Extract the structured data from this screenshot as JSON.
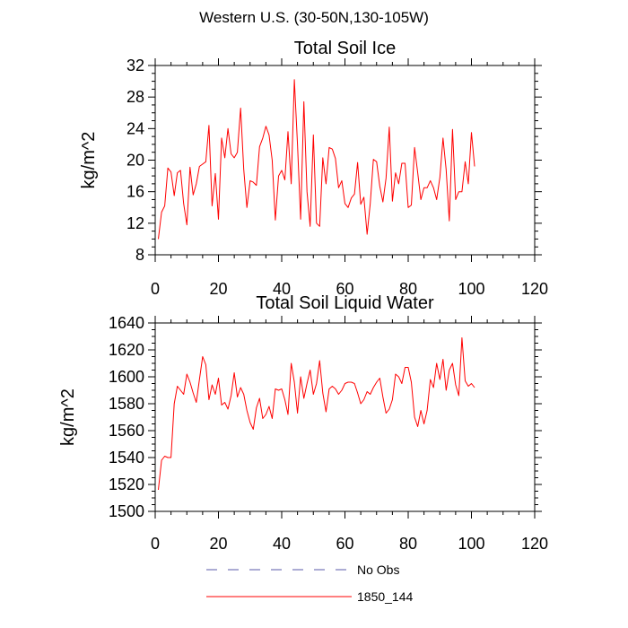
{
  "figure_title": "Western U.S. (30-50N,130-105W)",
  "legend": [
    {
      "label": "No Obs",
      "color": "#5a5aa8",
      "style": "dashed"
    },
    {
      "label": "1850_144",
      "color": "#ff0000",
      "style": "solid"
    }
  ],
  "chart_data": [
    {
      "type": "line",
      "title": "Total Soil Ice",
      "xlabel": "",
      "ylabel": "kg/m^2",
      "xlim": [
        0,
        120
      ],
      "ylim": [
        8,
        32
      ],
      "xticks": [
        0,
        20,
        40,
        60,
        80,
        100,
        120
      ],
      "yticks": [
        8,
        12,
        16,
        20,
        24,
        28,
        32
      ],
      "grid": false,
      "series": [
        {
          "name": "1850_144",
          "color": "#ff0000",
          "x": [
            1,
            2,
            3,
            4,
            5,
            6,
            7,
            8,
            9,
            10,
            11,
            12,
            13,
            14,
            15,
            16,
            17,
            18,
            19,
            20,
            21,
            22,
            23,
            24,
            25,
            26,
            27,
            28,
            29,
            30,
            31,
            32,
            33,
            34,
            35,
            36,
            37,
            38,
            39,
            40,
            41,
            42,
            43,
            44,
            45,
            46,
            47,
            48,
            49,
            50,
            51,
            52,
            53,
            54,
            55,
            56,
            57,
            58,
            59,
            60,
            61,
            62,
            63,
            64,
            65,
            66,
            67,
            68,
            69,
            70,
            71,
            72,
            73,
            74,
            75,
            76,
            77,
            78,
            79,
            80,
            81,
            82,
            83,
            84,
            85,
            86,
            87,
            88,
            89,
            90,
            91,
            92,
            93,
            94,
            95,
            96,
            97,
            98,
            99,
            100,
            101
          ],
          "y": [
            10.0,
            13.4,
            14.2,
            19.0,
            18.5,
            15.5,
            18.4,
            18.7,
            14.5,
            11.8,
            19.1,
            15.6,
            17.0,
            19.2,
            19.5,
            19.8,
            24.4,
            14.2,
            18.3,
            12.5,
            22.8,
            20.3,
            24.0,
            20.8,
            20.3,
            21.0,
            26.6,
            18.8,
            14.0,
            17.4,
            17.2,
            16.8,
            21.7,
            22.8,
            24.3,
            23.2,
            20.0,
            12.4,
            18.0,
            18.7,
            17.5,
            23.6,
            17.0,
            30.2,
            22.0,
            12.5,
            27.4,
            16.0,
            11.6,
            23.2,
            12.0,
            11.6,
            20.3,
            17.0,
            21.6,
            21.4,
            20.2,
            16.5,
            17.4,
            14.5,
            14.0,
            15.2,
            15.7,
            19.7,
            14.4,
            15.3,
            10.6,
            14.5,
            20.1,
            19.8,
            16.7,
            14.7,
            17.7,
            24.2,
            14.8,
            18.4,
            17.0,
            19.6,
            19.6,
            14.0,
            14.3,
            21.6,
            18.4,
            15.0,
            16.5,
            16.5,
            17.4,
            16.5,
            15.0,
            17.8,
            22.8,
            18.8,
            12.3,
            23.9,
            15.0,
            16.0,
            16.0,
            19.8,
            17.0,
            23.5,
            19.2
          ]
        }
      ]
    },
    {
      "type": "line",
      "title": "Total Soil Liquid Water",
      "xlabel": "",
      "ylabel": "kg/m^2",
      "xlim": [
        0,
        120
      ],
      "ylim": [
        1500,
        1640
      ],
      "xticks": [
        0,
        20,
        40,
        60,
        80,
        100,
        120
      ],
      "yticks": [
        1500,
        1520,
        1540,
        1560,
        1580,
        1600,
        1620,
        1640
      ],
      "grid": false,
      "series": [
        {
          "name": "1850_144",
          "color": "#ff0000",
          "x": [
            1,
            2,
            3,
            4,
            5,
            6,
            7,
            8,
            9,
            10,
            11,
            12,
            13,
            14,
            15,
            16,
            17,
            18,
            19,
            20,
            21,
            22,
            23,
            24,
            25,
            26,
            27,
            28,
            29,
            30,
            31,
            32,
            33,
            34,
            35,
            36,
            37,
            38,
            39,
            40,
            41,
            42,
            43,
            44,
            45,
            46,
            47,
            48,
            49,
            50,
            51,
            52,
            53,
            54,
            55,
            56,
            57,
            58,
            59,
            60,
            61,
            62,
            63,
            64,
            65,
            66,
            67,
            68,
            69,
            70,
            71,
            72,
            73,
            74,
            75,
            76,
            77,
            78,
            79,
            80,
            81,
            82,
            83,
            84,
            85,
            86,
            87,
            88,
            89,
            90,
            91,
            92,
            93,
            94,
            95,
            96,
            97,
            98,
            99,
            100,
            101
          ],
          "y": [
            1516,
            1538,
            1541,
            1540,
            1540,
            1580,
            1593,
            1590,
            1587,
            1602,
            1596,
            1588,
            1581,
            1598,
            1615,
            1609,
            1583,
            1594,
            1587,
            1599,
            1579,
            1581,
            1576,
            1586,
            1603,
            1585,
            1592,
            1587,
            1575,
            1566,
            1561,
            1577,
            1584,
            1569,
            1572,
            1578,
            1569,
            1591,
            1590,
            1591,
            1583,
            1572,
            1610,
            1596,
            1573,
            1600,
            1584,
            1595,
            1605,
            1587,
            1595,
            1612,
            1588,
            1574,
            1591,
            1593,
            1591,
            1587,
            1590,
            1595,
            1596,
            1596,
            1595,
            1588,
            1580,
            1583,
            1589,
            1587,
            1592,
            1596,
            1599,
            1585,
            1573,
            1576,
            1583,
            1602,
            1600,
            1595,
            1607,
            1607,
            1596,
            1570,
            1563,
            1575,
            1565,
            1575,
            1598,
            1592,
            1610,
            1598,
            1613,
            1590,
            1605,
            1610,
            1594,
            1586,
            1629,
            1597,
            1593,
            1595,
            1592
          ]
        }
      ]
    }
  ]
}
